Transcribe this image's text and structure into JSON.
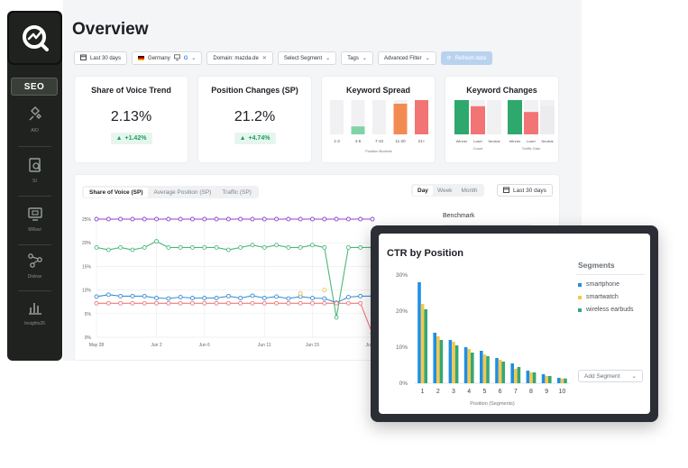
{
  "sidebar": {
    "active_tab": "SEO",
    "items": [
      {
        "label": "AIO",
        "icon": "sparkle-icon"
      },
      {
        "label": "SI",
        "icon": "document-search-icon"
      },
      {
        "label": "MRavi",
        "icon": "monitor-icon"
      },
      {
        "label": "Distrav",
        "icon": "nodes-icon"
      },
      {
        "label": "Insights26",
        "icon": "bar-chart-icon"
      }
    ]
  },
  "page": {
    "title": "Overview"
  },
  "filters": {
    "date": "Last 30 days",
    "country": "Germany",
    "domain": "Domain: mazda.de",
    "segment": "Select Segment",
    "tags": "Tags",
    "advanced": "Advanced Filter",
    "refresh": "Refresh data"
  },
  "cards": {
    "sov": {
      "title": "Share of Voice Trend",
      "value": "2.13%",
      "delta": "+1.42%"
    },
    "pos": {
      "title": "Position Changes (SP)",
      "value": "21.2%",
      "delta": "+4.74%"
    },
    "spread": {
      "title": "Keyword Spread",
      "categories": [
        "1-3",
        "4-6",
        "7-10",
        "11-20",
        "21+"
      ],
      "values": [
        0,
        22,
        0,
        85,
        100
      ],
      "colors": [
        "#ececee",
        "#7fd3a6",
        "#ececee",
        "#f28b52",
        "#f27474"
      ],
      "caption": "Position Buckets"
    },
    "changes": {
      "title": "Keyword Changes",
      "groups": [
        {
          "caption": "Count",
          "labels": [
            "Winner",
            "Loser",
            "Neutral"
          ],
          "values": [
            100,
            78,
            0
          ]
        },
        {
          "caption": "Traffic Gain",
          "labels": [
            "Winner",
            "Loser",
            "Neutral"
          ],
          "values": [
            100,
            62,
            78
          ]
        }
      ],
      "colors": [
        "#2fa86d",
        "#f27474",
        "#ececee"
      ]
    }
  },
  "main_chart": {
    "tabs": [
      "Share of Voice (SP)",
      "Average Position (SP)",
      "Traffic (SP)"
    ],
    "active_tab": 0,
    "periods": [
      "Day",
      "Week",
      "Month"
    ],
    "active_period": 0,
    "date": "Last 30 days",
    "legend_label": "Benchmark",
    "y_ticks": [
      "25%",
      "20%",
      "15%",
      "10%",
      "5%",
      "0%"
    ],
    "x_ticks": [
      "May 28",
      "Jun 2",
      "Jun 6",
      "Jun 11",
      "Jun 15",
      "Jun 20"
    ]
  },
  "chart_data": [
    {
      "type": "line",
      "title": "",
      "ylim": [
        0,
        27
      ],
      "y_unit": "%",
      "x": [
        "May 28",
        "May 29",
        "May 30",
        "May 31",
        "Jun 1",
        "Jun 2",
        "Jun 3",
        "Jun 4",
        "Jun 5",
        "Jun 6",
        "Jun 7",
        "Jun 8",
        "Jun 9",
        "Jun 10",
        "Jun 11",
        "Jun 12",
        "Jun 13",
        "Jun 14",
        "Jun 15",
        "Jun 16",
        "Jun 17",
        "Jun 18",
        "Jun 19",
        "Jun 20"
      ],
      "series": [
        {
          "color": "#8e44c9",
          "values": [
            25,
            25,
            25,
            25,
            25,
            25,
            25,
            25,
            25,
            25,
            25,
            25,
            25,
            25,
            25,
            25,
            25,
            25,
            25,
            25,
            25,
            25,
            25,
            25
          ]
        },
        {
          "color": "#4cb87a",
          "values": [
            19,
            18.5,
            19,
            18.5,
            19,
            20.3,
            19,
            19,
            19,
            19,
            19,
            18.5,
            19,
            19.5,
            19,
            19.5,
            19,
            19,
            19.5,
            19,
            4.2,
            19,
            19,
            19
          ]
        },
        {
          "color": "#3a8fd6",
          "values": [
            8.6,
            9,
            8.7,
            8.7,
            8.7,
            8.3,
            8.2,
            8.5,
            8.3,
            8.3,
            8.3,
            8.7,
            8.3,
            8.8,
            8.3,
            8.6,
            8.2,
            8.6,
            8.3,
            8.2,
            7.3,
            8.5,
            8.7,
            8.7
          ]
        },
        {
          "color": "#f2c24e",
          "values": [
            null,
            null,
            null,
            null,
            null,
            null,
            null,
            null,
            null,
            null,
            null,
            null,
            null,
            null,
            null,
            null,
            null,
            9.3,
            null,
            10,
            null,
            null,
            null,
            null
          ]
        },
        {
          "color": "#ef7b7b",
          "values": [
            7.2,
            7.2,
            7.2,
            7.2,
            7.2,
            7.2,
            7.2,
            7.2,
            7.2,
            7.2,
            7.2,
            7.2,
            7.2,
            7.2,
            7.2,
            7.2,
            7.2,
            7.2,
            7.2,
            7.2,
            7.2,
            7.2,
            7.2,
            0.8
          ]
        }
      ]
    },
    {
      "type": "bar",
      "title": "CTR by Position",
      "xlabel": "Position (Segments)",
      "ylabel": "",
      "ylim": [
        0,
        30
      ],
      "y_ticks": [
        "30%",
        "20%",
        "10%",
        "0%"
      ],
      "categories": [
        "1",
        "2",
        "3",
        "4",
        "5",
        "6",
        "7",
        "8",
        "9",
        "10"
      ],
      "series": [
        {
          "name": "smartphone",
          "color": "#1f8fe5",
          "values": [
            28,
            14,
            12,
            10,
            9,
            7,
            5.5,
            3.5,
            2.5,
            1.5
          ]
        },
        {
          "name": "smartwatch",
          "color": "#f5c84c",
          "values": [
            22,
            13,
            11.5,
            9.5,
            8,
            6.5,
            4,
            3,
            2,
            1.3
          ]
        },
        {
          "name": "wireless earbuds",
          "color": "#34a877",
          "values": [
            20.5,
            12,
            10.5,
            8.5,
            7.5,
            6,
            4.5,
            3,
            2,
            1.3
          ]
        }
      ]
    }
  ],
  "ctr_panel": {
    "segments_title": "Segments",
    "add_segment": "Add Segment"
  }
}
